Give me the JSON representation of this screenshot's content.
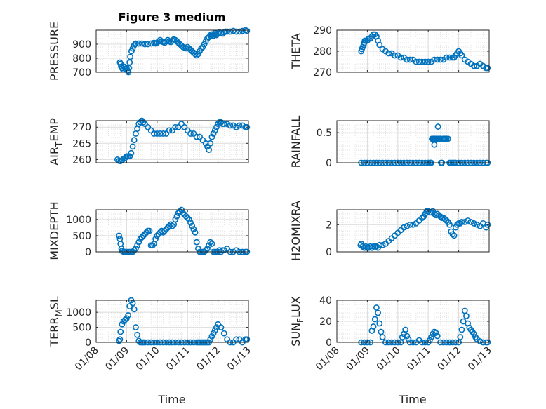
{
  "figure": {
    "title": "Figure 3 medium",
    "xlabel": "Time",
    "x_ticks": [
      "01/08",
      "01/09",
      "01/10",
      "01/11",
      "01/12",
      "01/13"
    ],
    "marker_color": "#0072BD"
  },
  "chart_data": [
    {
      "type": "scatter",
      "col": 0,
      "row": 0,
      "ylabel": "PRESSURE",
      "yticks": [
        700,
        800,
        900
      ],
      "ylim": [
        700,
        1000
      ],
      "grid_frac": 0.1,
      "x": [
        0.78,
        0.8,
        0.82,
        0.85,
        0.88,
        0.92,
        0.96,
        1.0,
        1.04,
        1.06,
        1.08,
        1.1,
        1.12,
        1.16,
        1.2,
        1.24,
        1.28,
        1.3,
        1.4,
        1.5,
        1.6,
        1.7,
        1.8,
        1.9,
        1.95,
        2.0,
        2.05,
        2.1,
        2.15,
        2.2,
        2.25,
        2.3,
        2.35,
        2.4,
        2.45,
        2.5,
        2.55,
        2.6,
        2.65,
        2.7,
        2.75,
        2.8,
        2.85,
        2.9,
        2.95,
        3.0,
        3.05,
        3.1,
        3.15,
        3.2,
        3.25,
        3.3,
        3.35,
        3.4,
        3.45,
        3.5,
        3.55,
        3.6,
        3.65,
        3.7,
        3.75,
        3.78,
        3.8,
        3.83,
        3.85,
        3.88,
        3.9,
        3.92,
        3.95,
        4.0,
        4.05,
        4.1,
        4.15,
        4.2,
        4.25,
        4.3,
        4.4,
        4.5,
        4.6,
        4.7,
        4.8,
        4.9,
        4.95
      ],
      "y": [
        770,
        760,
        740,
        730,
        720,
        740,
        725,
        730,
        710,
        700,
        730,
        770,
        810,
        850,
        870,
        890,
        900,
        905,
        905,
        905,
        900,
        900,
        905,
        910,
        905,
        910,
        920,
        930,
        920,
        915,
        910,
        920,
        930,
        920,
        915,
        925,
        935,
        930,
        920,
        910,
        900,
        890,
        880,
        875,
        870,
        880,
        870,
        860,
        850,
        840,
        830,
        820,
        830,
        850,
        870,
        880,
        900,
        920,
        940,
        950,
        960,
        970,
        970,
        960,
        960,
        970,
        980,
        970,
        965,
        975,
        985,
        980,
        975,
        985,
        990,
        990,
        990,
        995,
        990,
        990,
        995,
        1000,
        995
      ]
    },
    {
      "type": "scatter",
      "col": 1,
      "row": 0,
      "ylabel": "THETA",
      "yticks": [
        270,
        280,
        290
      ],
      "ylim": [
        270,
        290
      ],
      "grid_frac": 0.1,
      "x": [
        0.8,
        0.82,
        0.85,
        0.88,
        0.9,
        0.92,
        0.95,
        1.0,
        1.05,
        1.1,
        1.15,
        1.2,
        1.25,
        1.3,
        1.35,
        1.4,
        1.5,
        1.6,
        1.7,
        1.8,
        1.9,
        2.0,
        2.1,
        2.2,
        2.3,
        2.4,
        2.5,
        2.6,
        2.7,
        2.8,
        2.9,
        3.0,
        3.1,
        3.2,
        3.3,
        3.4,
        3.5,
        3.6,
        3.7,
        3.8,
        3.85,
        3.9,
        3.95,
        4.0,
        4.05,
        4.1,
        4.2,
        4.3,
        4.4,
        4.5,
        4.6,
        4.7,
        4.8,
        4.9,
        4.95
      ],
      "y": [
        280,
        281,
        282,
        283,
        284,
        285,
        285,
        285,
        286,
        286,
        287,
        288,
        288,
        287,
        285,
        283,
        281,
        280,
        279,
        279,
        278,
        278,
        277,
        277,
        276,
        276,
        276,
        275,
        275,
        275,
        275,
        275,
        275,
        276,
        276,
        276,
        276,
        277,
        277,
        277,
        277,
        278,
        279,
        280,
        279,
        278,
        276,
        275,
        274,
        273,
        273,
        274,
        273,
        272,
        272
      ]
    },
    {
      "type": "scatter",
      "col": 0,
      "row": 1,
      "ylabel": "AIR_TEMP",
      "yticks": [
        260,
        265,
        270
      ],
      "ylim": [
        259,
        272
      ],
      "grid_frac": 0.1,
      "x": [
        0.7,
        0.75,
        0.8,
        0.85,
        0.9,
        0.95,
        1.0,
        1.05,
        1.1,
        1.15,
        1.2,
        1.25,
        1.3,
        1.35,
        1.4,
        1.45,
        1.5,
        1.55,
        1.6,
        1.7,
        1.8,
        1.9,
        2.0,
        2.1,
        2.2,
        2.3,
        2.4,
        2.5,
        2.6,
        2.7,
        2.8,
        2.9,
        3.0,
        3.1,
        3.2,
        3.3,
        3.4,
        3.5,
        3.6,
        3.65,
        3.7,
        3.75,
        3.8,
        3.85,
        3.9,
        3.95,
        4.0,
        4.05,
        4.1,
        4.15,
        4.2,
        4.3,
        4.4,
        4.5,
        4.6,
        4.7,
        4.8,
        4.9,
        4.95
      ],
      "y": [
        260,
        259.6,
        259.5,
        259.8,
        260.2,
        260.5,
        261,
        261,
        261,
        262,
        264,
        266,
        268,
        269.5,
        271,
        271.5,
        272,
        271.5,
        271,
        270,
        269,
        268,
        268,
        268,
        268,
        268,
        269,
        269,
        270,
        270,
        271,
        270,
        269,
        268,
        268,
        267,
        267,
        266,
        265,
        264,
        263,
        265,
        267,
        268,
        269,
        270,
        271,
        271.5,
        271.5,
        271,
        271,
        271,
        270.5,
        270.5,
        270,
        270.5,
        270.5,
        270,
        270
      ]
    },
    {
      "type": "scatter",
      "col": 1,
      "row": 1,
      "ylabel": "RAINFALL",
      "yticks": [
        0,
        0.5
      ],
      "yticklabels": [
        "0",
        "0.5"
      ],
      "ylim": [
        0,
        0.7
      ],
      "grid_frac": 0.1,
      "x": [
        0.8,
        0.9,
        1.0,
        1.1,
        1.2,
        1.3,
        1.4,
        1.5,
        1.6,
        1.7,
        1.8,
        1.9,
        2.0,
        2.1,
        2.2,
        2.3,
        2.4,
        2.5,
        2.6,
        2.7,
        2.8,
        2.9,
        3.0,
        3.05,
        3.08,
        3.1,
        3.12,
        3.15,
        3.18,
        3.2,
        3.22,
        3.25,
        3.28,
        3.3,
        3.32,
        3.35,
        3.38,
        3.4,
        3.42,
        3.45,
        3.48,
        3.5,
        3.52,
        3.55,
        3.6,
        3.65,
        3.7,
        3.75,
        3.8,
        3.85,
        3.9,
        4.0,
        4.1,
        4.2,
        4.3,
        4.4,
        4.5,
        4.6,
        4.7,
        4.8,
        4.9,
        4.95
      ],
      "y": [
        0,
        0,
        0,
        0,
        0,
        0,
        0,
        0,
        0,
        0,
        0,
        0,
        0,
        0,
        0,
        0,
        0,
        0,
        0,
        0,
        0,
        0,
        0,
        0,
        0,
        0,
        0.4,
        0.4,
        0.4,
        0.3,
        0.4,
        0.4,
        0.4,
        0.4,
        0.6,
        0.4,
        0.4,
        0.4,
        0,
        0,
        0.4,
        0.4,
        0.4,
        0.4,
        0.4,
        0.4,
        0,
        0,
        0,
        0,
        0,
        0,
        0,
        0,
        0,
        0,
        0,
        0,
        0,
        0,
        0,
        0
      ]
    },
    {
      "type": "scatter",
      "col": 0,
      "row": 2,
      "ylabel": "MIXDEPTH",
      "yticks": [
        0,
        500,
        1000
      ],
      "ylim": [
        0,
        1300
      ],
      "grid_frac": 0.1,
      "x": [
        0.75,
        0.78,
        0.8,
        0.83,
        0.85,
        0.9,
        0.95,
        1.0,
        1.05,
        1.1,
        1.15,
        1.2,
        1.25,
        1.3,
        1.35,
        1.4,
        1.45,
        1.5,
        1.55,
        1.6,
        1.65,
        1.7,
        1.75,
        1.8,
        1.85,
        1.9,
        1.95,
        2.0,
        2.05,
        2.1,
        2.15,
        2.2,
        2.25,
        2.3,
        2.35,
        2.4,
        2.45,
        2.5,
        2.55,
        2.6,
        2.65,
        2.7,
        2.75,
        2.8,
        2.85,
        2.9,
        2.95,
        3.0,
        3.05,
        3.1,
        3.15,
        3.2,
        3.25,
        3.3,
        3.35,
        3.4,
        3.45,
        3.5,
        3.55,
        3.6,
        3.65,
        3.7,
        3.75,
        3.8,
        3.85,
        3.9,
        3.95,
        4.0,
        4.05,
        4.1,
        4.15,
        4.2,
        4.3,
        4.4,
        4.5,
        4.6,
        4.7,
        4.8,
        4.9,
        4.95
      ],
      "y": [
        500,
        400,
        250,
        100,
        30,
        0,
        0,
        0,
        0,
        0,
        0,
        0,
        50,
        100,
        200,
        300,
        400,
        450,
        500,
        550,
        600,
        650,
        650,
        200,
        200,
        250,
        400,
        500,
        550,
        600,
        650,
        600,
        650,
        700,
        750,
        800,
        850,
        800,
        850,
        1000,
        1100,
        1200,
        1250,
        1300,
        1200,
        1150,
        1100,
        1050,
        1000,
        900,
        800,
        700,
        600,
        300,
        100,
        0,
        0,
        0,
        0,
        50,
        100,
        200,
        300,
        250,
        0,
        0,
        0,
        0,
        50,
        0,
        50,
        50,
        100,
        0,
        0,
        50,
        0,
        0,
        0,
        0
      ]
    },
    {
      "type": "scatter",
      "col": 1,
      "row": 2,
      "ylabel": "H2OMIXRA",
      "yticks": [
        0,
        2
      ],
      "ylim": [
        0,
        3.1
      ],
      "grid_frac": 0.1,
      "x": [
        0.78,
        0.8,
        0.85,
        0.9,
        0.95,
        1.0,
        1.05,
        1.1,
        1.15,
        1.2,
        1.25,
        1.3,
        1.35,
        1.4,
        1.5,
        1.6,
        1.7,
        1.8,
        1.9,
        2.0,
        2.1,
        2.2,
        2.3,
        2.4,
        2.5,
        2.6,
        2.7,
        2.8,
        2.85,
        2.9,
        2.95,
        3.0,
        3.05,
        3.1,
        3.15,
        3.2,
        3.25,
        3.3,
        3.35,
        3.4,
        3.45,
        3.5,
        3.55,
        3.6,
        3.65,
        3.7,
        3.75,
        3.8,
        3.85,
        3.9,
        3.95,
        4.0,
        4.05,
        4.1,
        4.2,
        4.3,
        4.4,
        4.5,
        4.6,
        4.7,
        4.8,
        4.9,
        4.95
      ],
      "y": [
        0.5,
        0.6,
        0.4,
        0.3,
        0.4,
        0.3,
        0.3,
        0.4,
        0.3,
        0.4,
        0.4,
        0.4,
        0.3,
        0.5,
        0.5,
        0.6,
        0.8,
        1.0,
        1.2,
        1.4,
        1.6,
        1.8,
        1.9,
        2.0,
        2.0,
        2.1,
        2.3,
        2.5,
        2.6,
        2.8,
        3.0,
        3.0,
        2.9,
        2.9,
        3.0,
        2.8,
        2.7,
        2.8,
        2.7,
        2.6,
        2.5,
        2.5,
        2.4,
        2.3,
        2.2,
        2.0,
        1.5,
        1.3,
        1.2,
        1.8,
        2.0,
        2.1,
        2.1,
        2.2,
        2.2,
        2.3,
        2.2,
        2.1,
        2.0,
        1.9,
        2.1,
        1.8,
        2.0
      ]
    },
    {
      "type": "scatter",
      "col": 0,
      "row": 3,
      "ylabel": "TERR_MSL",
      "yticks": [
        0,
        500,
        1000
      ],
      "ylim": [
        0,
        1400
      ],
      "grid_frac": 0.1,
      "x": [
        0.75,
        0.78,
        0.8,
        0.85,
        0.9,
        0.95,
        1.0,
        1.05,
        1.1,
        1.15,
        1.2,
        1.25,
        1.3,
        1.35,
        1.4,
        1.45,
        1.5,
        1.55,
        1.6,
        1.7,
        1.8,
        1.9,
        2.0,
        2.1,
        2.2,
        2.3,
        2.4,
        2.5,
        2.6,
        2.7,
        2.8,
        2.9,
        3.0,
        3.1,
        3.2,
        3.3,
        3.35,
        3.4,
        3.45,
        3.5,
        3.55,
        3.6,
        3.65,
        3.7,
        3.75,
        3.8,
        3.85,
        3.9,
        3.95,
        4.0,
        4.1,
        4.2,
        4.3,
        4.4,
        4.5,
        4.6,
        4.7,
        4.8,
        4.9,
        4.95
      ],
      "y": [
        50,
        100,
        350,
        600,
        700,
        750,
        800,
        900,
        1200,
        1400,
        1300,
        1100,
        500,
        250,
        50,
        0,
        0,
        0,
        0,
        0,
        0,
        0,
        0,
        0,
        0,
        0,
        0,
        0,
        0,
        0,
        0,
        0,
        0,
        0,
        0,
        0,
        0,
        0,
        0,
        0,
        0,
        0,
        0,
        0,
        100,
        200,
        300,
        400,
        500,
        600,
        500,
        300,
        100,
        0,
        0,
        100,
        100,
        0,
        100,
        100
      ]
    },
    {
      "type": "scatter",
      "col": 1,
      "row": 3,
      "ylabel": "SUN_FLUX",
      "yticks": [
        0,
        20,
        40
      ],
      "ylim": [
        0,
        40
      ],
      "grid_frac": 0.1,
      "x": [
        0.8,
        0.9,
        1.0,
        1.1,
        1.15,
        1.2,
        1.25,
        1.3,
        1.35,
        1.4,
        1.45,
        1.5,
        1.6,
        1.7,
        1.8,
        1.9,
        2.0,
        2.1,
        2.15,
        2.2,
        2.25,
        2.3,
        2.35,
        2.4,
        2.5,
        2.6,
        2.7,
        2.8,
        2.9,
        3.0,
        3.05,
        3.1,
        3.15,
        3.2,
        3.25,
        3.3,
        3.4,
        3.5,
        3.6,
        3.7,
        3.8,
        3.9,
        4.0,
        4.05,
        4.1,
        4.15,
        4.2,
        4.25,
        4.3,
        4.35,
        4.4,
        4.45,
        4.5,
        4.55,
        4.6,
        4.7,
        4.8,
        4.9,
        4.95
      ],
      "y": [
        0,
        0,
        0,
        0,
        11,
        15,
        22,
        33,
        28,
        18,
        10,
        5,
        0,
        0,
        0,
        0,
        0,
        0,
        5,
        8,
        12,
        6,
        3,
        0,
        0,
        0,
        2,
        0,
        0,
        0,
        2,
        5,
        8,
        10,
        9,
        6,
        0,
        0,
        0,
        0,
        0,
        0,
        0,
        5,
        12,
        20,
        30,
        25,
        18,
        14,
        12,
        10,
        8,
        5,
        3,
        1,
        0,
        0,
        0
      ]
    }
  ]
}
